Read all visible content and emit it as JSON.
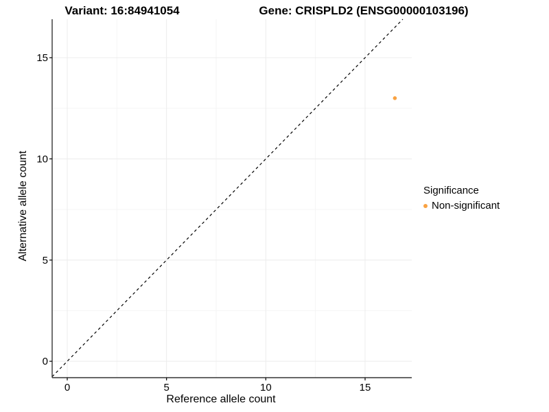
{
  "chart_data": {
    "type": "scatter",
    "titles": [
      "Variant: 16:84941054",
      "Gene: CRISPLD2 (ENSG00000103196)"
    ],
    "xlabel": "Reference allele count",
    "ylabel": "Alternative allele count",
    "xlim": [
      -0.76,
      17.35
    ],
    "ylim": [
      -0.81,
      16.9
    ],
    "x_ticks": [
      0,
      5,
      10,
      15
    ],
    "y_ticks": [
      0,
      5,
      10,
      15
    ],
    "x_minor_ticks": [
      2.5,
      7.5,
      12.5
    ],
    "y_minor_ticks": [
      2.5,
      7.5,
      12.5
    ],
    "grid": true,
    "points": [
      {
        "x": 16.5,
        "y": 13,
        "series": "Non-significant"
      }
    ],
    "identity_line": {
      "type": "y=x",
      "style": "dashed",
      "color": "#000000"
    },
    "point_color": "#F9A242",
    "legend": {
      "title": "Significance",
      "position": "right",
      "items": [
        {
          "label": "Non-significant",
          "color": "#F9A242"
        }
      ]
    }
  }
}
